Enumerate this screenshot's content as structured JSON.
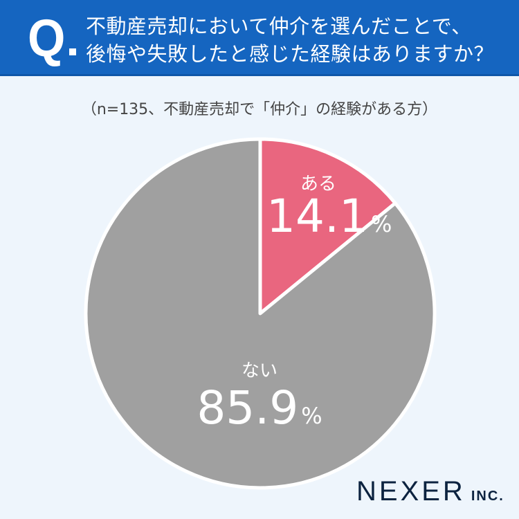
{
  "header": {
    "q_mark": "Q",
    "question_line1": "不動産売却において仲介を選んだことで、",
    "question_line2": "後悔や失敗したと感じた経験はありますか？"
  },
  "subtitle": "（n=135、不動産売却で「仲介」の経験がある方）",
  "labels": {
    "aru": {
      "name": "ある",
      "value": "14.1",
      "unit": "%"
    },
    "nai": {
      "name": "ない",
      "value": "85.9",
      "unit": "%"
    }
  },
  "logo": {
    "main": "NEXER",
    "suffix": "INC."
  },
  "colors": {
    "header": "#1565c0",
    "background": "#eef5fc",
    "aru": "#e9667f",
    "nai": "#a0a0a0",
    "logo": "#0c2340"
  },
  "chart_data": {
    "type": "pie",
    "title": "不動産売却において仲介を選んだことで、後悔や失敗したと感じた経験はありますか？",
    "subtitle": "（n=135、不動産売却で「仲介」の経験がある方）",
    "categories": [
      "ある",
      "ない"
    ],
    "values": [
      14.1,
      85.9
    ],
    "unit": "%",
    "colors": [
      "#e9667f",
      "#a0a0a0"
    ],
    "start_angle": "12 o'clock, clockwise",
    "legend": "none (labels inside slices)"
  }
}
